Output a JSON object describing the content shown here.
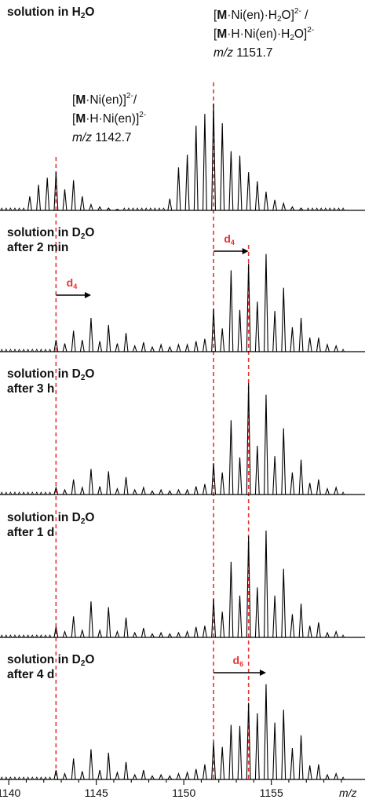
{
  "chart_data": {
    "type": "line",
    "title": "",
    "xlabel": "m/z",
    "ylabel": "",
    "xlim": [
      1139.5,
      1159.3
    ],
    "xticks": [
      1140,
      1145,
      1150,
      1155
    ],
    "xtick_labels": [
      "1140",
      "1145",
      "1150",
      "1155"
    ],
    "grid": false,
    "reference_lines": [
      {
        "x": 1142.7,
        "color": "#e8312f",
        "style": "dashed"
      },
      {
        "x": 1151.7,
        "color": "#e8312f",
        "style": "dashed"
      },
      {
        "x": 1153.7,
        "color": "#e8312f",
        "style": "dashed",
        "from_panel": 1,
        "to_panel": 4
      }
    ],
    "annotations": [
      {
        "lines": [
          "[M·Ni(en)]2-/",
          "[M·H·Ni(en)]2-",
          "m/z 1142.7"
        ],
        "x": 1142.7
      },
      {
        "lines": [
          "[M·Ni(en)·H2O]2- /",
          "[M·H·Ni(en)·H2O]2-",
          "m/z 1151.7"
        ],
        "x": 1151.7
      }
    ],
    "panels": [
      {
        "label_line1": "solution in H2O",
        "label_line2": "",
        "peaks_x": [
          1141.2,
          1141.7,
          1142.2,
          1142.7,
          1143.2,
          1143.7,
          1144.2,
          1144.7,
          1145.2,
          1145.7,
          1146.2,
          1149.2,
          1149.7,
          1150.2,
          1150.7,
          1151.2,
          1151.7,
          1152.2,
          1152.7,
          1153.2,
          1153.7,
          1154.2,
          1154.7,
          1155.2,
          1155.7,
          1156.2,
          1156.7
        ],
        "peaks_y": [
          0.12,
          0.22,
          0.28,
          0.33,
          0.18,
          0.26,
          0.12,
          0.05,
          0.03,
          0.02,
          0.01,
          0.1,
          0.37,
          0.48,
          0.73,
          0.83,
          0.92,
          0.75,
          0.51,
          0.47,
          0.33,
          0.25,
          0.16,
          0.09,
          0.06,
          0.03,
          0.02
        ],
        "arrow": null
      },
      {
        "label_line1": "solution in D2O",
        "label_line2": "after 2 min",
        "peaks_x": [
          1142.7,
          1143.2,
          1143.7,
          1144.2,
          1144.7,
          1145.2,
          1145.7,
          1146.2,
          1146.7,
          1147.2,
          1147.7,
          1148.2,
          1148.7,
          1149.2,
          1149.7,
          1150.2,
          1150.7,
          1151.2,
          1151.7,
          1152.2,
          1152.7,
          1153.2,
          1153.7,
          1154.2,
          1154.7,
          1155.2,
          1155.7,
          1156.2,
          1156.7,
          1157.2,
          1157.7,
          1158.2,
          1158.7
        ],
        "peaks_y": [
          0.1,
          0.07,
          0.18,
          0.1,
          0.29,
          0.09,
          0.23,
          0.07,
          0.16,
          0.05,
          0.08,
          0.04,
          0.06,
          0.04,
          0.06,
          0.06,
          0.09,
          0.11,
          0.37,
          0.2,
          0.7,
          0.36,
          0.76,
          0.43,
          0.84,
          0.35,
          0.55,
          0.21,
          0.29,
          0.12,
          0.12,
          0.06,
          0.05
        ],
        "arrow": {
          "from": 1142.7,
          "to": 1144.7,
          "label_base": "d",
          "label_sub": "4"
        }
      },
      {
        "label_line1": "solution in D2O",
        "label_line2": "after 3 h",
        "peaks_x": [
          1142.7,
          1143.2,
          1143.7,
          1144.2,
          1144.7,
          1145.2,
          1145.7,
          1146.2,
          1146.7,
          1147.2,
          1147.7,
          1148.2,
          1148.7,
          1149.2,
          1149.7,
          1150.2,
          1150.7,
          1151.2,
          1151.7,
          1152.2,
          1152.7,
          1153.2,
          1153.7,
          1154.2,
          1154.7,
          1155.2,
          1155.7,
          1156.2,
          1156.7,
          1157.2,
          1157.7,
          1158.2,
          1158.7
        ],
        "peaks_y": [
          0.06,
          0.04,
          0.13,
          0.06,
          0.22,
          0.07,
          0.2,
          0.05,
          0.15,
          0.04,
          0.06,
          0.03,
          0.04,
          0.03,
          0.04,
          0.04,
          0.07,
          0.09,
          0.27,
          0.19,
          0.64,
          0.32,
          0.96,
          0.42,
          0.86,
          0.33,
          0.57,
          0.19,
          0.3,
          0.1,
          0.13,
          0.05,
          0.06
        ],
        "arrow": null
      },
      {
        "label_line1": "solution in D2O",
        "label_line2": "after 1 d",
        "peaks_x": [
          1142.7,
          1143.2,
          1143.7,
          1144.2,
          1144.7,
          1145.2,
          1145.7,
          1146.2,
          1146.7,
          1147.2,
          1147.7,
          1148.2,
          1148.7,
          1149.2,
          1149.7,
          1150.2,
          1150.7,
          1151.2,
          1151.7,
          1152.2,
          1152.7,
          1153.2,
          1153.7,
          1154.2,
          1154.7,
          1155.2,
          1155.7,
          1156.2,
          1156.7,
          1157.2,
          1157.7,
          1158.2,
          1158.7
        ],
        "peaks_y": [
          0.09,
          0.05,
          0.18,
          0.06,
          0.31,
          0.06,
          0.26,
          0.05,
          0.17,
          0.04,
          0.08,
          0.03,
          0.04,
          0.03,
          0.04,
          0.05,
          0.09,
          0.1,
          0.33,
          0.22,
          0.65,
          0.36,
          0.87,
          0.43,
          0.92,
          0.36,
          0.59,
          0.2,
          0.29,
          0.1,
          0.13,
          0.04,
          0.05
        ],
        "arrow": null
      },
      {
        "label_line1": "solution in D2O",
        "label_line2": "after 4 d",
        "peaks_x": [
          1142.7,
          1143.2,
          1143.7,
          1144.2,
          1144.7,
          1145.2,
          1145.7,
          1146.2,
          1146.7,
          1147.2,
          1147.7,
          1148.2,
          1148.7,
          1149.2,
          1149.7,
          1150.2,
          1150.7,
          1151.2,
          1151.7,
          1152.2,
          1152.7,
          1153.2,
          1153.7,
          1154.2,
          1154.7,
          1155.2,
          1155.7,
          1156.2,
          1156.7,
          1157.2,
          1157.7,
          1158.2,
          1158.7
        ],
        "peaks_y": [
          0.08,
          0.05,
          0.18,
          0.07,
          0.26,
          0.08,
          0.23,
          0.06,
          0.15,
          0.04,
          0.08,
          0.03,
          0.04,
          0.03,
          0.05,
          0.06,
          0.09,
          0.13,
          0.32,
          0.28,
          0.47,
          0.46,
          0.66,
          0.57,
          0.82,
          0.49,
          0.6,
          0.27,
          0.38,
          0.12,
          0.13,
          0.04,
          0.05
        ],
        "arrow": {
          "from": 1151.7,
          "to": 1154.7,
          "label_base": "d",
          "label_sub": "6"
        }
      }
    ]
  }
}
